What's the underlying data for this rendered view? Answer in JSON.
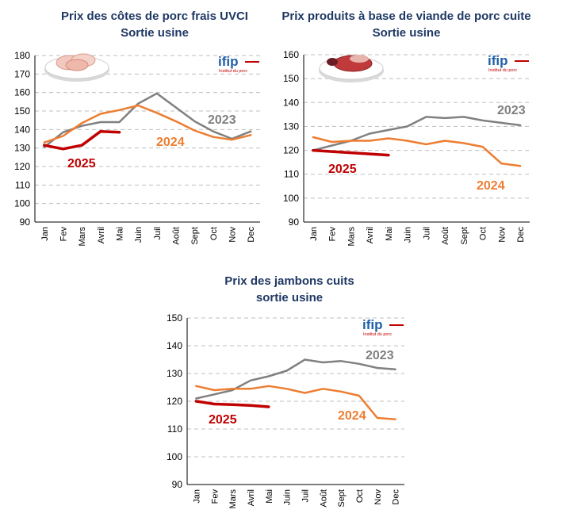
{
  "months": [
    "Jan",
    "Fev",
    "Mars",
    "Avril",
    "Mai",
    "Juin",
    "Juil",
    "Août",
    "Sept",
    "Oct",
    "Nov",
    "Dec"
  ],
  "logo": {
    "brand": "ifip",
    "subtitle": "Institut du porc"
  },
  "colors": {
    "y2023": "#808080",
    "y2024": "#ed7d31",
    "y2025": "#c00000",
    "title": "#1f3864"
  },
  "chart_data": [
    {
      "type": "line",
      "title_line1": "Prix des côtes de porc frais UVCI",
      "title_line2": "Sortie usine",
      "image": "pork-chops-plate",
      "ylim": [
        90,
        180
      ],
      "yticks": [
        90,
        100,
        110,
        120,
        130,
        140,
        150,
        160,
        170,
        180
      ],
      "series": [
        {
          "name": "2023",
          "color": "#808080",
          "values": [
            130.5,
            138.5,
            142,
            144,
            144,
            154,
            159.5,
            152,
            144.5,
            139,
            135,
            139
          ]
        },
        {
          "name": "2024",
          "color": "#ed7d31",
          "values": [
            133,
            136.5,
            143.5,
            148.5,
            150.5,
            153,
            149,
            144.5,
            139.5,
            136,
            134.5,
            137
          ]
        },
        {
          "name": "2025",
          "color": "#c00000",
          "values": [
            131.5,
            129.5,
            131.5,
            139,
            138.5
          ]
        }
      ]
    },
    {
      "type": "line",
      "title_line1": "Prix produits à base de viande de porc cuite",
      "title_line2": "Sortie usine",
      "image": "cooked-pork-plate",
      "ylim": [
        90,
        160
      ],
      "yticks": [
        90,
        100,
        110,
        120,
        130,
        140,
        150,
        160
      ],
      "series": [
        {
          "name": "2023",
          "color": "#808080",
          "values": [
            120,
            122,
            124,
            127,
            128.5,
            130,
            134,
            133.5,
            134,
            132.5,
            131.5,
            130.5
          ]
        },
        {
          "name": "2024",
          "color": "#ed7d31",
          "values": [
            125.5,
            123.5,
            124,
            124,
            125,
            124,
            122.5,
            124,
            123,
            121.5,
            114.5,
            113.5
          ]
        },
        {
          "name": "2025",
          "color": "#c00000",
          "values": [
            120,
            119.5,
            119,
            118.5,
            118
          ]
        }
      ]
    },
    {
      "type": "line",
      "title_line1": "Prix des jambons cuits",
      "title_line2": "sortie usine",
      "ylim": [
        90,
        150
      ],
      "yticks": [
        90,
        100,
        110,
        120,
        130,
        140,
        150
      ],
      "series": [
        {
          "name": "2023",
          "color": "#808080",
          "values": [
            121,
            122.5,
            124,
            127.5,
            129,
            131,
            135,
            134,
            134.5,
            133.5,
            132,
            131.5
          ]
        },
        {
          "name": "2024",
          "color": "#ed7d31",
          "values": [
            125.5,
            124,
            124.5,
            124.5,
            125.5,
            124.5,
            123,
            124.5,
            123.5,
            122,
            114,
            113.5
          ]
        },
        {
          "name": "2025",
          "color": "#c00000",
          "values": [
            120,
            119,
            118.8,
            118.5,
            118
          ]
        }
      ]
    }
  ]
}
